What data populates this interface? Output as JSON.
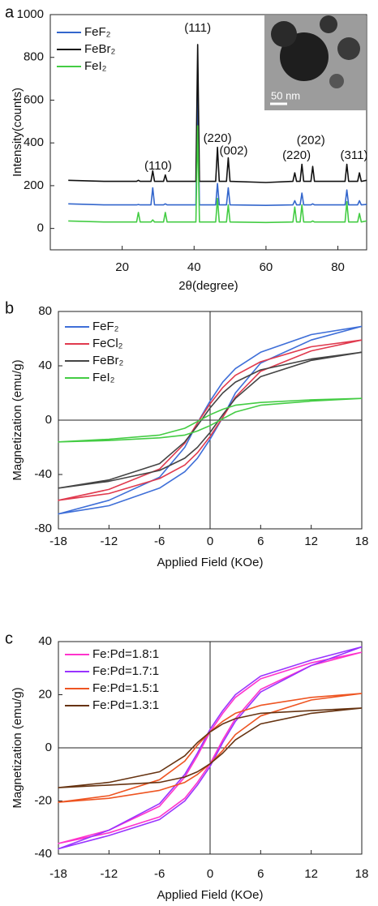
{
  "chart_data": [
    {
      "type": "line",
      "panel_label": "a",
      "xlabel": "2θ(degree)",
      "ylabel": "Intensity(counts)",
      "x": [
        5,
        15,
        24,
        24.5,
        25,
        28,
        28.5,
        29,
        31.5,
        32,
        32.5,
        40.5,
        41,
        41.5,
        46,
        46.5,
        47,
        49,
        49.5,
        50,
        60,
        67.5,
        68,
        68.5,
        69.5,
        70,
        70.5,
        72.5,
        73,
        73.5,
        82,
        82.5,
        83,
        85.5,
        86,
        86.5,
        88
      ],
      "series": [
        {
          "name": "FeF₂",
          "color": "#3366cc",
          "values": [
            115,
            110,
            110,
            112,
            110,
            110,
            190,
            110,
            110,
            115,
            110,
            110,
            640,
            110,
            110,
            210,
            110,
            110,
            190,
            110,
            108,
            110,
            130,
            110,
            110,
            165,
            110,
            110,
            115,
            110,
            110,
            180,
            110,
            110,
            130,
            110,
            112
          ]
        },
        {
          "name": "FeBr₂",
          "color": "#111111",
          "values": [
            225,
            220,
            220,
            225,
            220,
            220,
            270,
            220,
            220,
            250,
            220,
            220,
            860,
            220,
            220,
            380,
            220,
            220,
            330,
            220,
            215,
            220,
            260,
            220,
            220,
            300,
            220,
            220,
            290,
            220,
            220,
            300,
            220,
            220,
            260,
            220,
            225
          ]
        },
        {
          "name": "FeI₂",
          "color": "#44cc44",
          "values": [
            35,
            30,
            30,
            75,
            30,
            30,
            40,
            30,
            30,
            75,
            30,
            30,
            480,
            30,
            30,
            140,
            30,
            30,
            110,
            30,
            28,
            30,
            100,
            30,
            30,
            110,
            30,
            30,
            35,
            30,
            30,
            125,
            30,
            30,
            70,
            30,
            35
          ]
        }
      ],
      "annotations": [
        "(110)",
        "(111)",
        "(220)",
        "(002)",
        "(220)",
        "(202)",
        "(311)"
      ],
      "inset_scale_label": "50 nm",
      "xlim": [
        0,
        88
      ],
      "ylim": [
        -100,
        1000
      ],
      "xticks": [
        20,
        40,
        60,
        80
      ],
      "yticks": [
        0,
        200,
        400,
        600,
        800,
        1000
      ]
    },
    {
      "type": "line",
      "panel_label": "b",
      "xlabel": "Applied Field (KOe)",
      "ylabel": "Magnetization (emu/g)",
      "zero_lines": true,
      "x": [
        18,
        12,
        6,
        3,
        1.5,
        0,
        -1.5,
        -3,
        -6,
        -12,
        -18,
        -12,
        -6,
        -3,
        -1.5,
        0,
        1.5,
        3,
        6,
        12,
        18
      ],
      "series": [
        {
          "name": "FeF₂",
          "color": "#3f6fd8",
          "values": [
            69,
            63,
            50,
            38,
            28,
            14,
            -2,
            -20,
            -42,
            -59,
            -69,
            -63,
            -50,
            -38,
            -28,
            -14,
            2,
            20,
            42,
            59,
            69
          ]
        },
        {
          "name": "FeCl₂",
          "color": "#e03a4e",
          "values": [
            59,
            54,
            43,
            33,
            24,
            12,
            -2,
            -17,
            -36,
            -51,
            -59,
            -54,
            -43,
            -33,
            -24,
            -12,
            2,
            17,
            36,
            51,
            59
          ]
        },
        {
          "name": "FeBr₂",
          "color": "#444444",
          "values": [
            50,
            45,
            37,
            28,
            20,
            9,
            -4,
            -16,
            -32,
            -44,
            -50,
            -45,
            -37,
            -28,
            -20,
            -9,
            4,
            16,
            32,
            44,
            50
          ]
        },
        {
          "name": "FeI₂",
          "color": "#44cc44",
          "values": [
            16,
            15,
            13,
            11,
            8,
            4,
            -1,
            -6,
            -11,
            -14,
            -16,
            -15,
            -13,
            -11,
            -8,
            -4,
            1,
            6,
            11,
            14,
            16
          ]
        }
      ],
      "xlim": [
        -18,
        18
      ],
      "ylim": [
        -80,
        80
      ],
      "xticks": [
        -18,
        -12,
        -6,
        0,
        6,
        12,
        18
      ],
      "yticks": [
        -80,
        -40,
        0,
        40,
        80
      ]
    },
    {
      "type": "line",
      "panel_label": "c",
      "xlabel": "Applied Field (KOe)",
      "ylabel": "Magnetization (emu/g)",
      "zero_lines": true,
      "x": [
        18,
        12,
        6,
        3,
        1.5,
        0,
        -1.5,
        -3,
        -6,
        -12,
        -18,
        -12,
        -6,
        -3,
        -1.5,
        0,
        1.5,
        3,
        6,
        12,
        18
      ],
      "series": [
        {
          "name": "Fe:Pd=1.8:1",
          "color": "#ff33cc",
          "values": [
            36,
            32,
            26,
            19,
            13,
            6,
            -3,
            -11,
            -22,
            -31,
            -36,
            -32,
            -26,
            -19,
            -13,
            -6,
            3,
            11,
            22,
            31,
            36
          ]
        },
        {
          "name": "Fe:Pd=1.7:1",
          "color": "#9933ff",
          "values": [
            38,
            33,
            27,
            20,
            14,
            7,
            -2,
            -10,
            -21,
            -31,
            -38,
            -33,
            -27,
            -20,
            -14,
            -7,
            2,
            10,
            21,
            31,
            38
          ]
        },
        {
          "name": "Fe:Pd=1.5:1",
          "color": "#ee5522",
          "values": [
            20.5,
            19,
            16,
            13,
            10,
            6,
            1,
            -5,
            -12,
            -18,
            -20.5,
            -19,
            -16,
            -13,
            -10,
            -6,
            -1,
            5,
            12,
            18,
            20.5
          ]
        },
        {
          "name": "Fe:Pd=1.3:1",
          "color": "#663311",
          "values": [
            15,
            14,
            13,
            11,
            9,
            6,
            2,
            -3,
            -9,
            -13,
            -15,
            -14,
            -13,
            -11,
            -9,
            -6,
            -2,
            3,
            9,
            13,
            15
          ]
        }
      ],
      "xlim": [
        -18,
        18
      ],
      "ylim": [
        -40,
        40
      ],
      "xticks": [
        -18,
        -12,
        -6,
        0,
        6,
        12,
        18
      ],
      "yticks": [
        -40,
        -20,
        0,
        20,
        40
      ]
    }
  ]
}
